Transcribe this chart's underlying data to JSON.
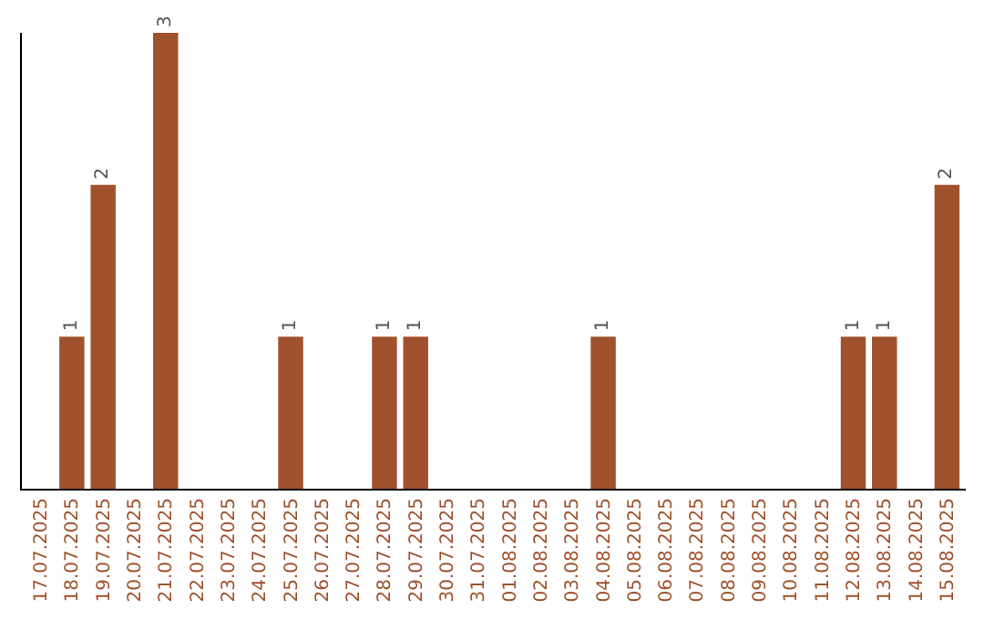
{
  "chart_data": {
    "type": "bar",
    "categories": [
      "17.07.2025",
      "18.07.2025",
      "19.07.2025",
      "20.07.2025",
      "21.07.2025",
      "22.07.2025",
      "23.07.2025",
      "24.07.2025",
      "25.07.2025",
      "26.07.2025",
      "27.07.2025",
      "28.07.2025",
      "29.07.2025",
      "30.07.2025",
      "31.07.2025",
      "01.08.2025",
      "02.08.2025",
      "03.08.2025",
      "04.08.2025",
      "05.08.2025",
      "06.08.2025",
      "07.08.2025",
      "08.08.2025",
      "09.08.2025",
      "10.08.2025",
      "11.08.2025",
      "12.08.2025",
      "13.08.2025",
      "14.08.2025",
      "15.08.2025"
    ],
    "values": [
      0,
      1,
      2,
      0,
      3,
      0,
      0,
      0,
      1,
      0,
      0,
      1,
      1,
      0,
      0,
      0,
      0,
      0,
      1,
      0,
      0,
      0,
      0,
      0,
      0,
      0,
      1,
      1,
      0,
      2
    ],
    "value_labels": [
      null,
      "1",
      "2",
      null,
      "3",
      null,
      null,
      null,
      "1",
      null,
      null,
      "1",
      "1",
      null,
      null,
      null,
      null,
      null,
      "1",
      null,
      null,
      null,
      null,
      null,
      null,
      null,
      "1",
      "1",
      null,
      "2"
    ],
    "color": "#a0522d",
    "ylim": [
      0,
      3
    ],
    "tick_labels": "x",
    "legend": false
  }
}
